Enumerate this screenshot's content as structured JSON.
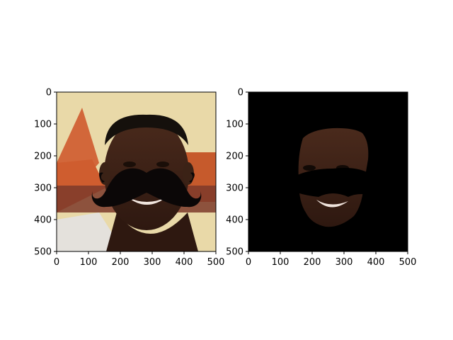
{
  "chart_data": [
    {
      "type": "image",
      "title": "",
      "xlabel": "",
      "ylabel": "",
      "xlim": [
        0,
        500
      ],
      "ylim": [
        500,
        0
      ],
      "xticks": [
        "0",
        "100",
        "200",
        "300",
        "400",
        "500"
      ],
      "yticks": [
        "0",
        "100",
        "200",
        "300",
        "400",
        "500"
      ],
      "content": "face photo with black mustache overlay"
    },
    {
      "type": "image",
      "title": "",
      "xlabel": "",
      "ylabel": "",
      "xlim": [
        0,
        500
      ],
      "ylim": [
        500,
        0
      ],
      "xticks": [
        "0",
        "100",
        "200",
        "300",
        "400",
        "500"
      ],
      "yticks": [
        "0",
        "100",
        "200",
        "300",
        "400",
        "500"
      ],
      "content": "segmented face mask on black background with mustache region"
    }
  ]
}
